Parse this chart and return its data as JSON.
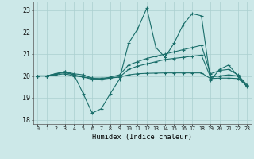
{
  "xlabel": "Humidex (Indice chaleur)",
  "bg_color": "#cce8e8",
  "grid_color": "#aacfcf",
  "line_color": "#1a6e6a",
  "xlim": [
    -0.5,
    23.5
  ],
  "ylim": [
    17.8,
    23.4
  ],
  "yticks": [
    18,
    19,
    20,
    21,
    22,
    23
  ],
  "xticks": [
    0,
    1,
    2,
    3,
    4,
    5,
    6,
    7,
    8,
    9,
    10,
    11,
    12,
    13,
    14,
    15,
    16,
    17,
    18,
    19,
    20,
    21,
    22,
    23
  ],
  "series": [
    [
      20.0,
      20.0,
      20.1,
      20.15,
      20.05,
      19.2,
      18.3,
      18.5,
      19.2,
      19.85,
      21.5,
      22.15,
      23.1,
      21.3,
      20.85,
      21.5,
      22.35,
      22.85,
      22.75,
      19.8,
      20.3,
      20.5,
      20.0,
      19.5
    ],
    [
      20.0,
      20.0,
      20.1,
      20.2,
      20.1,
      20.05,
      19.9,
      19.85,
      19.95,
      20.05,
      20.5,
      20.65,
      20.8,
      20.9,
      21.0,
      21.1,
      21.2,
      21.3,
      21.4,
      20.1,
      20.25,
      20.3,
      20.05,
      19.6
    ],
    [
      20.0,
      20.0,
      20.1,
      20.2,
      20.05,
      19.95,
      19.85,
      19.85,
      19.9,
      19.95,
      20.3,
      20.45,
      20.55,
      20.65,
      20.75,
      20.8,
      20.85,
      20.9,
      20.95,
      19.95,
      20.0,
      20.05,
      20.0,
      19.55
    ],
    [
      20.0,
      20.0,
      20.05,
      20.1,
      20.0,
      19.95,
      19.9,
      19.9,
      19.92,
      19.95,
      20.05,
      20.1,
      20.12,
      20.13,
      20.14,
      20.14,
      20.14,
      20.14,
      20.14,
      19.88,
      19.9,
      19.9,
      19.88,
      19.55
    ]
  ]
}
